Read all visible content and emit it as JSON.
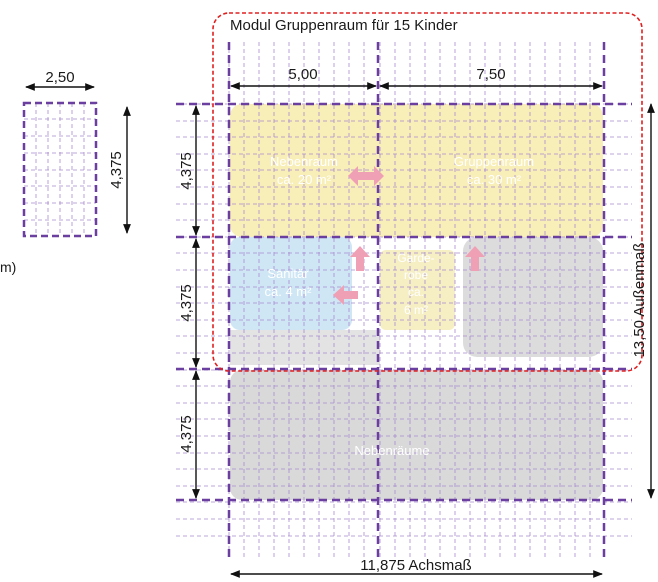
{
  "title": "Modul Gruppenraum für 15 Kinder",
  "small_module": {
    "width": "2,50",
    "height": "4,375"
  },
  "partial_text": "m)",
  "dims_top": [
    "5,00",
    "7,50"
  ],
  "dims_left": [
    "4,375",
    "4,375",
    "4,375"
  ],
  "outer_right": "13,50 Außenmaß",
  "axis_bottom": "11,875 Achsmaß",
  "rooms": [
    {
      "name": "Nebenraum",
      "area": "ca. 20 m²"
    },
    {
      "name": "Gruppenraum",
      "area": "ca. 30 m²"
    },
    {
      "name": "Sanitär",
      "area": "ca. 4 m²"
    },
    {
      "name": "Garde-",
      "name2": "robe",
      "area": "ca.",
      "area2": "6 m²"
    },
    {
      "name": "Nebenräume"
    }
  ],
  "colors": {
    "module_lines": "#6a3fa0",
    "highlight_border": "#e02020",
    "yellow_room": "#f8eeb8",
    "blue_room": "#cfe6f5",
    "grey_room": "#d9d9d9",
    "arrow": "#f0a0b4"
  }
}
